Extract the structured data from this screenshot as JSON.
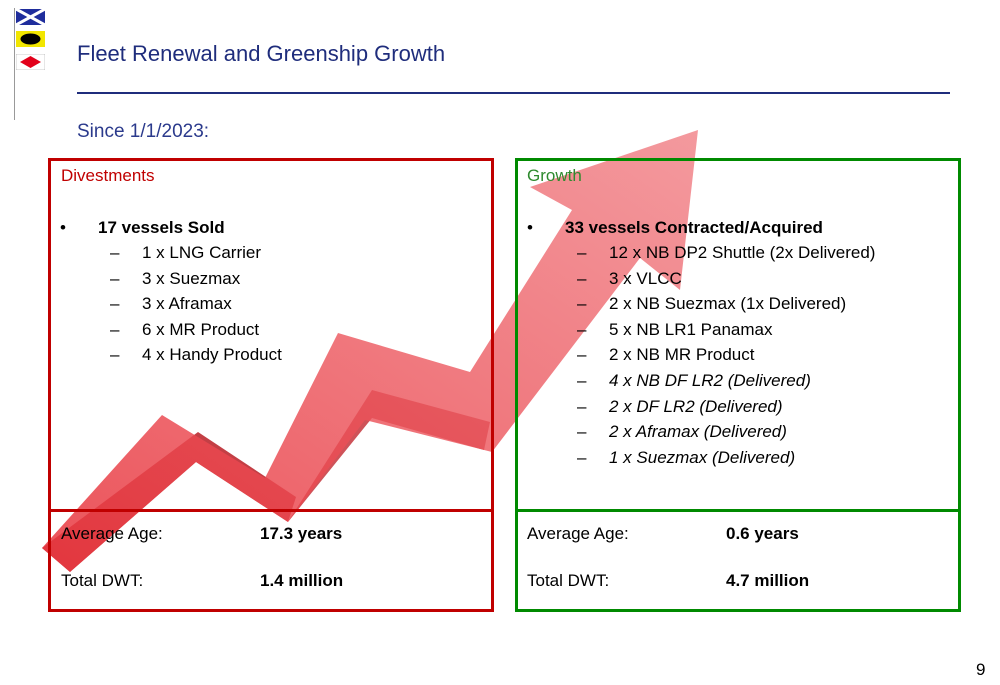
{
  "title": "Fleet Renewal and Greenship Growth",
  "subtitle": "Since 1/1/2023:",
  "page_number": "9",
  "flags": [
    {
      "name": "cross-flag",
      "bg": "#1f2d9c",
      "mark": "#ffffff"
    },
    {
      "name": "yellow-black-flag",
      "bg": "#f2e600",
      "mark": "#000000"
    },
    {
      "name": "red-diamond-flag",
      "bg": "#ffffff",
      "mark": "#e2001a"
    }
  ],
  "divestments": {
    "header": "Divestments",
    "bullet": "17 vessels Sold",
    "items": [
      "1 x LNG Carrier",
      "3 x Suezmax",
      "3 x Aframax",
      "6 x MR Product",
      "4 x Handy Product"
    ],
    "avg_age_label": "Average Age:",
    "avg_age_value": "17.3 years",
    "dwt_label": "Total DWT:",
    "dwt_value": "1.4 million"
  },
  "growth": {
    "header": "Growth",
    "bullet": "33 vessels Contracted/Acquired",
    "items": [
      {
        "text": "12 x NB DP2 Shuttle (2x Delivered)",
        "italic": false
      },
      {
        "text": "3 x VLCC",
        "italic": false
      },
      {
        "text": "2 x NB Suezmax (1x Delivered)",
        "italic": false
      },
      {
        "text": "5 x NB LR1 Panamax",
        "italic": false
      },
      {
        "text": "2 x NB MR Product",
        "italic": false
      },
      {
        "text": "4 x NB DF LR2 (Delivered)",
        "italic": true
      },
      {
        "text": "2 x DF LR2 (Delivered)",
        "italic": true
      },
      {
        "text": "2 x Aframax (Delivered)",
        "italic": true
      },
      {
        "text": "1 x Suezmax (Delivered)",
        "italic": true
      }
    ],
    "avg_age_label": "Average Age:",
    "avg_age_value": "0.6 years",
    "dwt_label": "Total DWT:",
    "dwt_value": "4.7 million"
  },
  "colors": {
    "title": "#1f2d7c",
    "divest": "#c00000",
    "growth": "#008a00",
    "arrow": "#e8353d"
  }
}
